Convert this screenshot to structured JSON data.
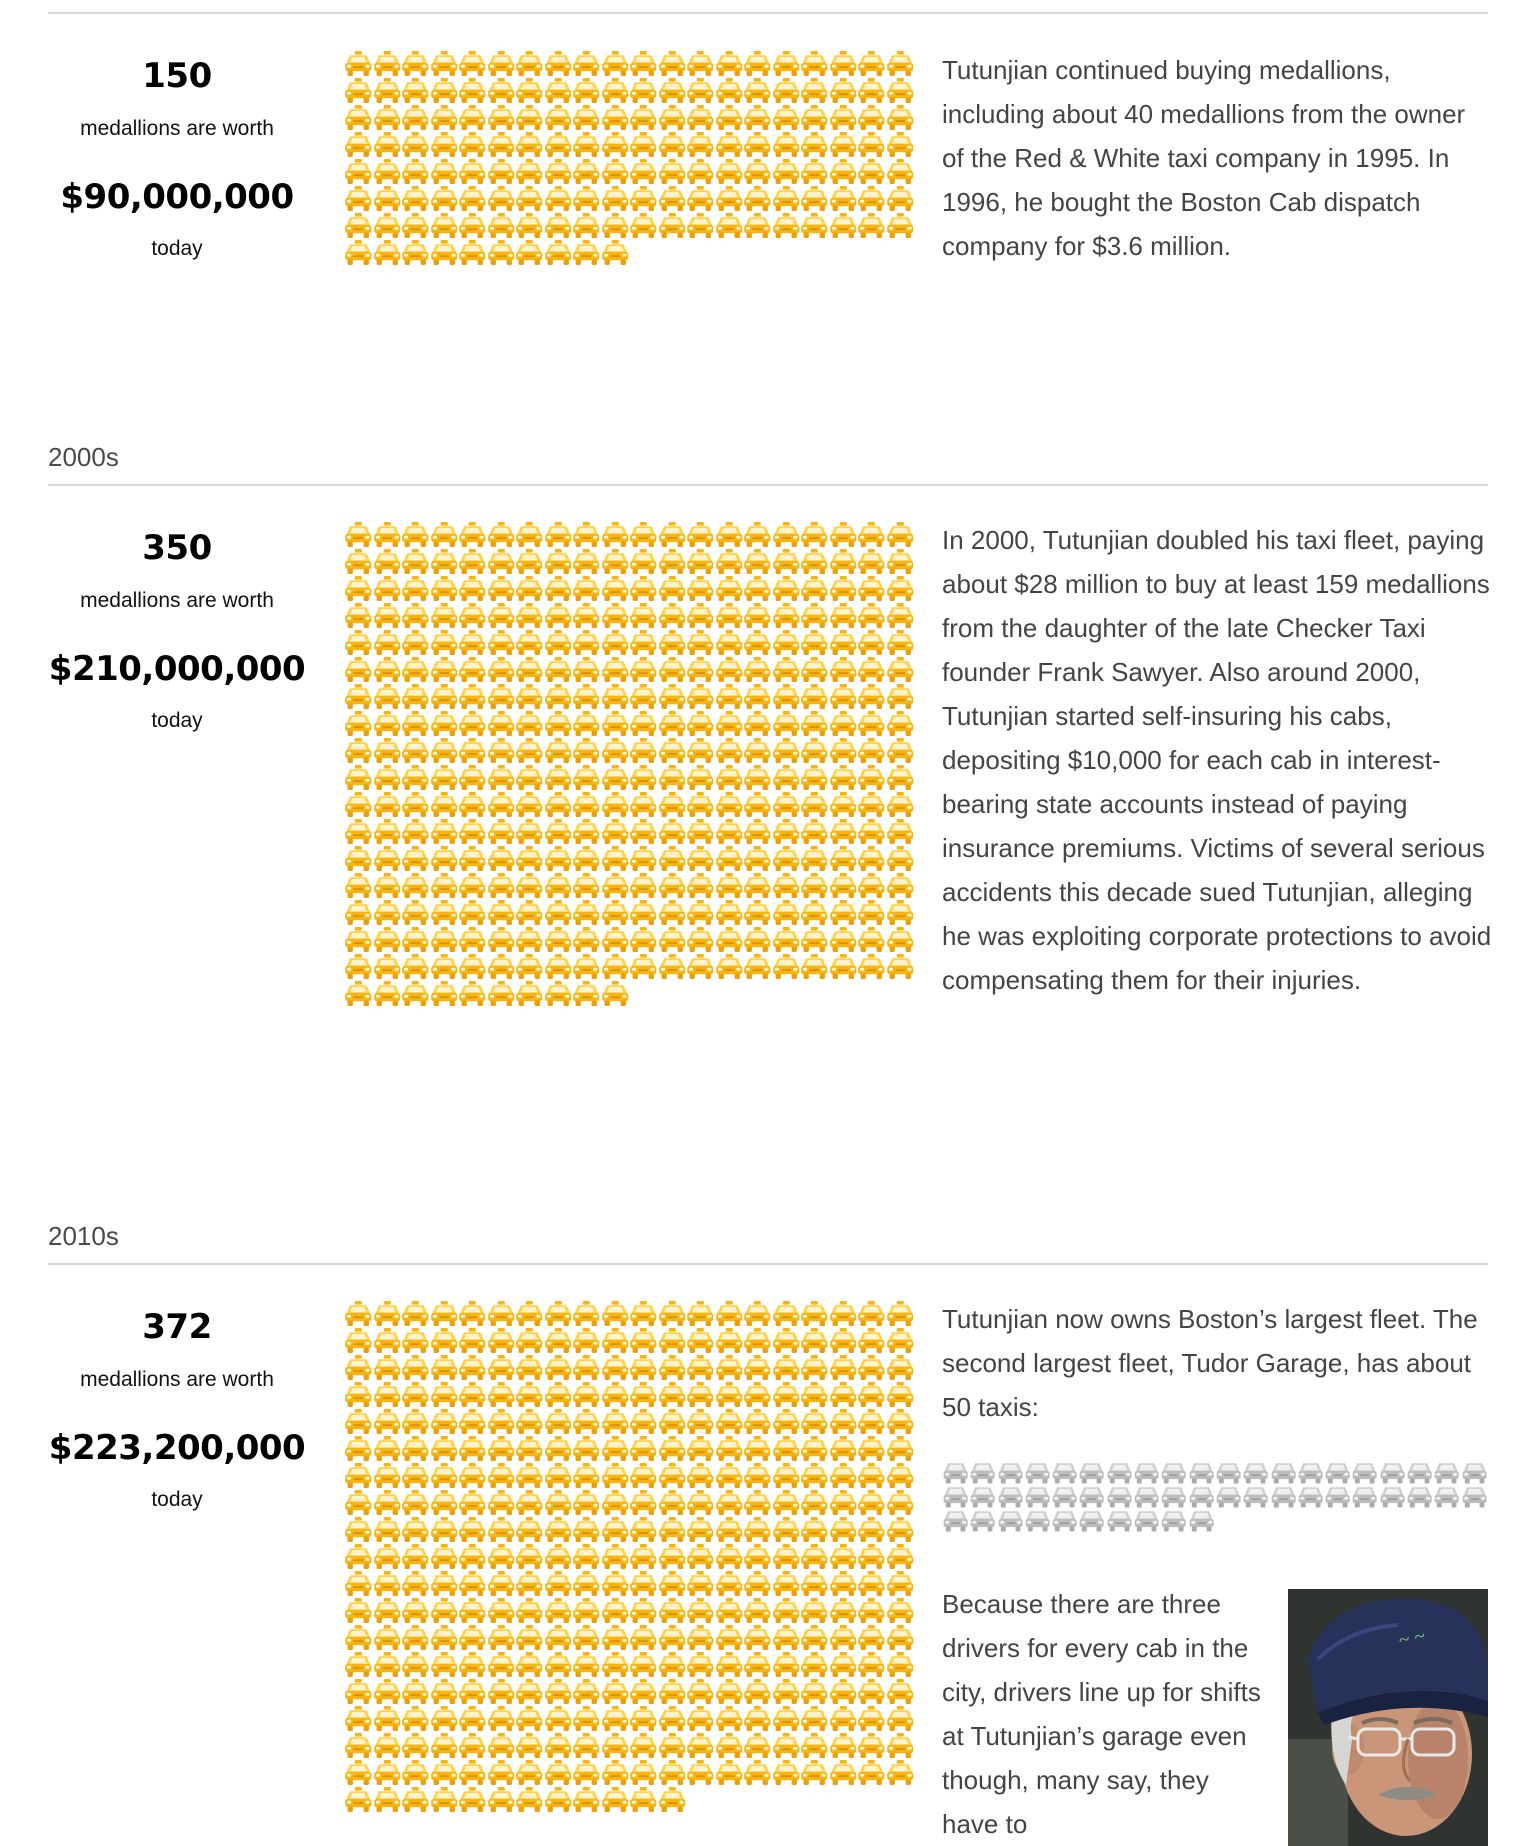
{
  "sections": [
    {
      "decade": "",
      "count": 150,
      "count_label": "150",
      "worth_label": "medallions are worth",
      "value": "$90,000,000",
      "when_label": "today",
      "story": "Tutunjian continued buying medallions, including about 40 medallions from the owner of the Red & White taxi company in 1995. In 1996, he bought the Boston Cab dispatch company for $3.6 million."
    },
    {
      "decade": "2000s",
      "count": 350,
      "count_label": "350",
      "worth_label": "medallions are worth",
      "value": "$210,000,000",
      "when_label": "today",
      "story": "In 2000, Tutunjian doubled his taxi fleet, paying about $28 million to buy at least 159 medallions from the daughter of the late Checker Taxi founder Frank Sawyer. Also around 2000, Tutunjian started self-insuring his cabs, depositing $10,000 for each cab in interest-bearing state accounts instead of paying insurance premiums. Victims of several serious accidents this decade sued Tutunjian, alleging he was exploiting corporate protections to avoid compensating them for their injuries."
    },
    {
      "decade": "2010s",
      "count": 372,
      "count_label": "372",
      "worth_label": "medallions are worth",
      "value": "$223,200,000",
      "when_label": "today",
      "story": "Tutunjian now owns Boston’s largest fleet. The second largest fleet, Tudor Garage, has about 50 taxis:",
      "comparison_count": 50,
      "story2": "Because there are three drivers for every cab in the city, drivers line up for shifts at Tutunjian’s garage even though, many say, they have to"
    }
  ],
  "colors": {
    "cab_yellow": "#f7b514",
    "cab_yellow_light": "#ffd24a",
    "cab_gray": "#bdbdbd",
    "cab_gray_light": "#d9d9d9",
    "rule": "#d8d8d8"
  },
  "icons": {
    "taxi": "taxi-icon",
    "car": "car-icon",
    "photo": "man-in-cap-photo"
  }
}
